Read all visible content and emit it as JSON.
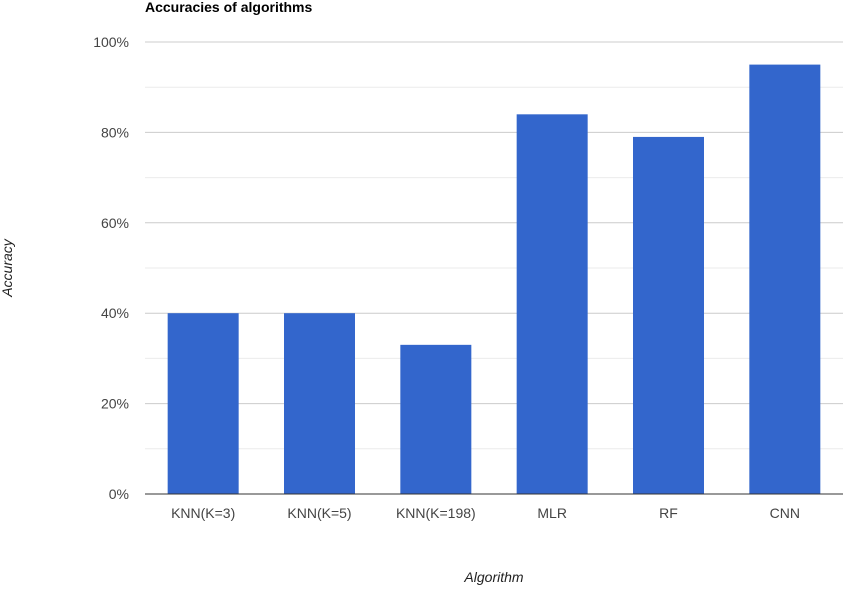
{
  "chart_data": {
    "type": "bar",
    "title": "Accuracies of algorithms",
    "xlabel": "Algorithm",
    "ylabel": "Accuracy",
    "categories": [
      "KNN(K=3)",
      "KNN(K=5)",
      "KNN(K=198)",
      "MLR",
      "RF",
      "CNN"
    ],
    "values": [
      40,
      40,
      33,
      84,
      79,
      95
    ],
    "ylim": [
      0,
      100
    ],
    "y_ticks": [
      0,
      20,
      40,
      60,
      80,
      100
    ],
    "y_tick_labels": [
      "0%",
      "20%",
      "40%",
      "60%",
      "80%",
      "100%"
    ],
    "grid": true,
    "minor_grid": true,
    "legend": "none",
    "colors": {
      "bar": "#3366cc",
      "grid_major": "#cccccc",
      "grid_minor": "#ebebeb",
      "axis": "#333333",
      "tick_text": "#444444",
      "title_text": "#000000",
      "axis_title_text": "#222222"
    }
  }
}
